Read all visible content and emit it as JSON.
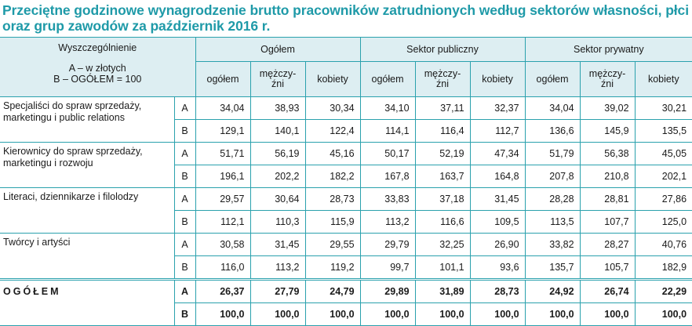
{
  "title": {
    "line1": "Przeciętne godzinowe wynagrodzenie brutto pracowników zatrudnionych według sektorów własności, płci",
    "line2": "oraz grup zawodów za październik 2016 r."
  },
  "header": {
    "stub_title": "Wyszczególnienie",
    "stub_legend_a": "A – w złotych",
    "stub_legend_b": "B – OGÓŁEM = 100",
    "groups": [
      "Ogółem",
      "Sektor publiczny",
      "Sektor prywatny"
    ],
    "subcolumns": [
      "ogółem",
      "mężczy-\nźni",
      "kobiety"
    ],
    "sub_ogolem": "ogółem",
    "sub_mezczyzni_1": "mężczy-",
    "sub_mezczyzni_2": "źni",
    "sub_kobiety": "kobiety"
  },
  "rows": [
    {
      "label": "Specjaliści do spraw sprzedaży, marketingu i public relations",
      "a_label": "A",
      "a": [
        "34,04",
        "38,93",
        "30,34",
        "34,10",
        "37,11",
        "32,37",
        "34,04",
        "39,02",
        "30,21"
      ],
      "b_label": "B",
      "b": [
        "129,1",
        "140,1",
        "122,4",
        "114,1",
        "116,4",
        "112,7",
        "136,6",
        "145,9",
        "135,5"
      ]
    },
    {
      "label": "Kierownicy do spraw sprzedaży, marketingu i rozwoju",
      "a_label": "A",
      "a": [
        "51,71",
        "56,19",
        "45,16",
        "50,17",
        "52,19",
        "47,34",
        "51,79",
        "56,38",
        "45,05"
      ],
      "b_label": "B",
      "b": [
        "196,1",
        "202,2",
        "182,2",
        "167,8",
        "163,7",
        "164,8",
        "207,8",
        "210,8",
        "202,1"
      ]
    },
    {
      "label": "Literaci, dziennikarze i filolodzy",
      "a_label": "A",
      "a": [
        "29,57",
        "30,64",
        "28,73",
        "33,83",
        "37,18",
        "31,45",
        "28,28",
        "28,81",
        "27,86"
      ],
      "b_label": "B",
      "b": [
        "112,1",
        "110,3",
        "115,9",
        "113,2",
        "116,6",
        "109,5",
        "113,5",
        "107,7",
        "125,0"
      ]
    },
    {
      "label": "Twórcy i artyści",
      "a_label": "A",
      "a": [
        "30,58",
        "31,45",
        "29,55",
        "29,79",
        "32,25",
        "26,90",
        "33,82",
        "28,27",
        "40,76"
      ],
      "b_label": "B",
      "b": [
        "116,0",
        "113,2",
        "119,2",
        "99,7",
        "101,1",
        "93,6",
        "135,7",
        "105,7",
        "182,9"
      ]
    },
    {
      "label": "OGÓŁEM",
      "a_label": "A",
      "a": [
        "26,37",
        "27,79",
        "24,79",
        "29,89",
        "31,89",
        "28,73",
        "24,92",
        "26,74",
        "22,29"
      ],
      "b_label": "B",
      "b": [
        "100,0",
        "100,0",
        "100,0",
        "100,0",
        "100,0",
        "100,0",
        "100,0",
        "100,0",
        "100,0"
      ]
    }
  ],
  "colors": {
    "title": "#1f9aa8",
    "border": "#2aa1ad",
    "header_bg": "#ddeef2"
  }
}
